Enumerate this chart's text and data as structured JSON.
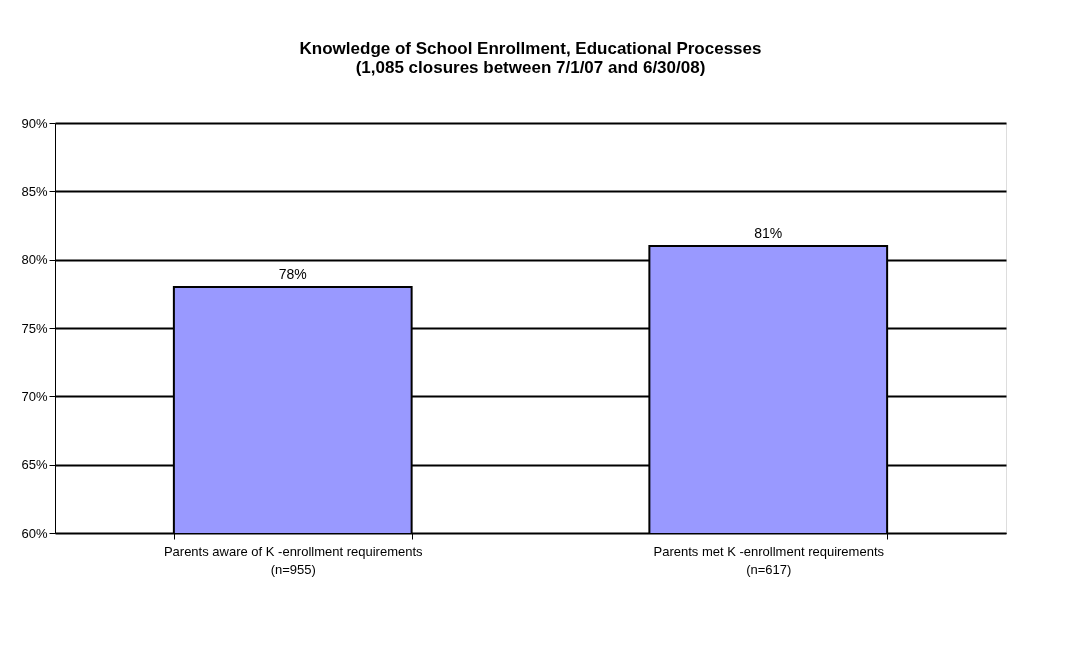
{
  "chart_data": {
    "type": "bar",
    "title": "Knowledge of School Enrollment, Educational Processes\n(1,085 closures between 7/1/07 and 6/30/08)",
    "categories": [
      "Parents aware of K -enrollment requirements\n(n=955)",
      "Parents met K -enrollment requirements\n(n=617)"
    ],
    "values": [
      78,
      81
    ],
    "color": "#9999ff",
    "value_labels": [
      "78%",
      "81%"
    ],
    "ylim": [
      60,
      90
    ],
    "yticks": [
      {
        "value": 60,
        "label": "60%"
      },
      {
        "value": 65,
        "label": "65%"
      },
      {
        "value": 70,
        "label": "70%"
      },
      {
        "value": 75,
        "label": "75%"
      },
      {
        "value": 80,
        "label": "80%"
      },
      {
        "value": 85,
        "label": "85%"
      },
      {
        "value": 90,
        "label": "90%"
      }
    ],
    "grid": "y"
  }
}
